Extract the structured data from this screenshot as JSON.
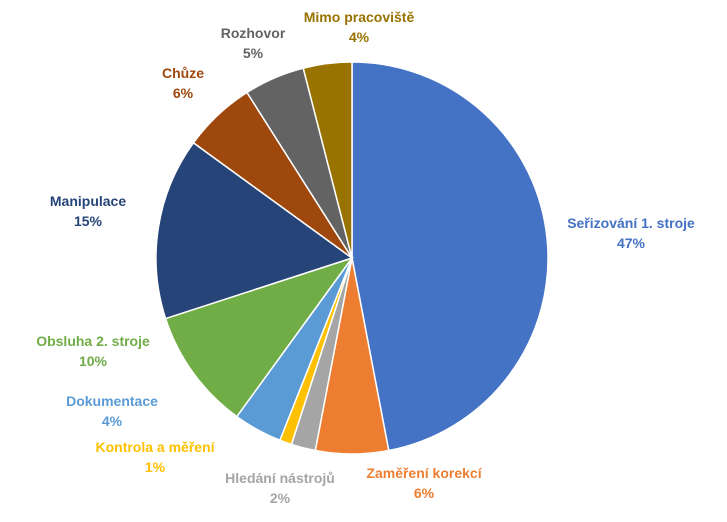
{
  "chart_data": {
    "type": "pie",
    "title": "",
    "start_angle_deg": 0,
    "direction": "clockwise",
    "slices": [
      {
        "name": "Seřizování 1. stroje",
        "value": 47,
        "pct_label": "47%",
        "color": "#4472C4"
      },
      {
        "name": "Zaměření korekcí",
        "value": 6,
        "pct_label": "6%",
        "color": "#ED7D31"
      },
      {
        "name": "Hledání nástrojů",
        "value": 2,
        "pct_label": "2%",
        "color": "#A5A5A5"
      },
      {
        "name": "Kontrola a měření",
        "value": 1,
        "pct_label": "1%",
        "color": "#FFC000"
      },
      {
        "name": "Dokumentace",
        "value": 4,
        "pct_label": "4%",
        "color": "#5B9BD5"
      },
      {
        "name": "Obsluha 2. stroje",
        "value": 10,
        "pct_label": "10%",
        "color": "#70AD47"
      },
      {
        "name": "Manipulace",
        "value": 15,
        "pct_label": "15%",
        "color": "#264478"
      },
      {
        "name": "Chůze",
        "value": 6,
        "pct_label": "6%",
        "color": "#9E480E"
      },
      {
        "name": "Rozhovor",
        "value": 5,
        "pct_label": "5%",
        "color": "#636363"
      },
      {
        "name": "Mimo pracoviště",
        "value": 4,
        "pct_label": "4%",
        "color": "#997300"
      }
    ]
  }
}
